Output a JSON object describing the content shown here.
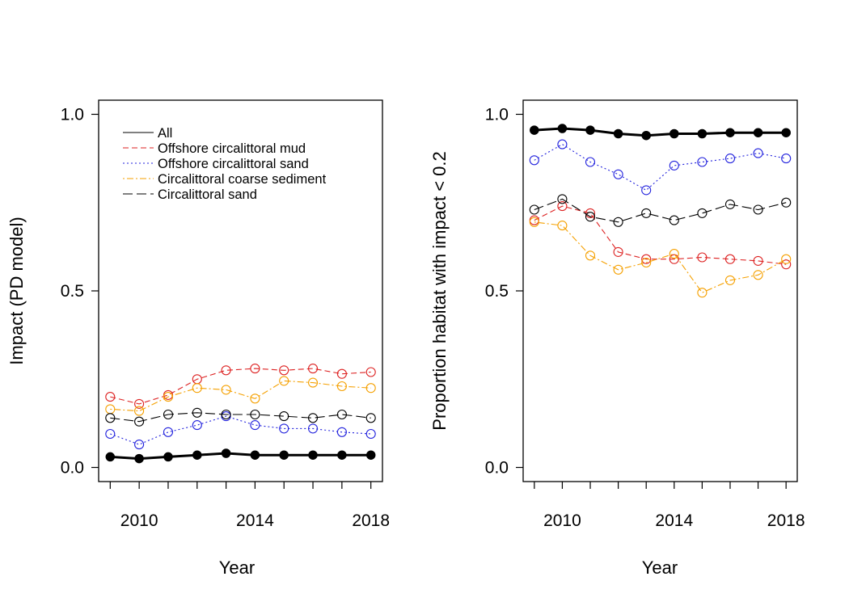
{
  "chart_data": [
    {
      "type": "line",
      "title": "",
      "xlabel": "Year",
      "ylabel": "Impact (PD model)",
      "xlim": [
        2008.6,
        2018.4
      ],
      "ylim": [
        -0.04,
        1.04
      ],
      "x_ticks": [
        2009,
        2010,
        2011,
        2012,
        2013,
        2014,
        2015,
        2016,
        2017,
        2018
      ],
      "x_tick_labels": [
        "2010",
        "2014",
        "2018"
      ],
      "y_ticks": [
        "0.0",
        "0.5",
        "1.0"
      ],
      "x": [
        2009,
        2010,
        2011,
        2012,
        2013,
        2014,
        2015,
        2016,
        2017,
        2018
      ],
      "legend": {
        "position": "top-left",
        "entries": [
          "All",
          "Offshore circalittoral mud",
          "Offshore circalittoral sand",
          "Circalittoral coarse sediment",
          "Circalittoral sand"
        ]
      },
      "series": [
        {
          "name": "All",
          "color": "#000000",
          "style": "solid-bold-filled",
          "values": [
            0.03,
            0.025,
            0.03,
            0.035,
            0.04,
            0.035,
            0.035,
            0.035,
            0.035,
            0.035
          ]
        },
        {
          "name": "Offshore circalittoral mud",
          "color": "#dd2222",
          "style": "dashed",
          "values": [
            0.2,
            0.18,
            0.205,
            0.25,
            0.275,
            0.28,
            0.275,
            0.28,
            0.265,
            0.27
          ]
        },
        {
          "name": "Offshore circalittoral sand",
          "color": "#2222dd",
          "style": "dotted",
          "values": [
            0.095,
            0.065,
            0.1,
            0.12,
            0.145,
            0.12,
            0.11,
            0.11,
            0.1,
            0.095
          ]
        },
        {
          "name": "Circalittoral coarse sediment",
          "color": "#f5a000",
          "style": "dotdash",
          "values": [
            0.165,
            0.16,
            0.2,
            0.225,
            0.22,
            0.195,
            0.245,
            0.24,
            0.23,
            0.225
          ]
        },
        {
          "name": "Circalittoral sand",
          "color": "#000000",
          "style": "longdash",
          "values": [
            0.14,
            0.13,
            0.15,
            0.155,
            0.15,
            0.15,
            0.145,
            0.14,
            0.15,
            0.14
          ]
        }
      ]
    },
    {
      "type": "line",
      "title": "",
      "xlabel": "Year",
      "ylabel": "Proportion habitat with impact < 0.2",
      "xlim": [
        2008.6,
        2018.4
      ],
      "ylim": [
        -0.04,
        1.04
      ],
      "x_ticks": [
        2009,
        2010,
        2011,
        2012,
        2013,
        2014,
        2015,
        2016,
        2017,
        2018
      ],
      "x_tick_labels": [
        "2010",
        "2014",
        "2018"
      ],
      "y_ticks": [
        "0.0",
        "0.5",
        "1.0"
      ],
      "x": [
        2009,
        2010,
        2011,
        2012,
        2013,
        2014,
        2015,
        2016,
        2017,
        2018
      ],
      "series": [
        {
          "name": "All",
          "color": "#000000",
          "style": "solid-bold-filled",
          "values": [
            0.955,
            0.96,
            0.955,
            0.945,
            0.94,
            0.945,
            0.945,
            0.948,
            0.948,
            0.948
          ]
        },
        {
          "name": "Offshore circalittoral mud",
          "color": "#dd2222",
          "style": "dashed",
          "values": [
            0.7,
            0.74,
            0.72,
            0.61,
            0.59,
            0.59,
            0.595,
            0.59,
            0.585,
            0.575
          ]
        },
        {
          "name": "Offshore circalittoral sand",
          "color": "#2222dd",
          "style": "dotted",
          "values": [
            0.87,
            0.915,
            0.865,
            0.83,
            0.785,
            0.855,
            0.865,
            0.875,
            0.89,
            0.875
          ]
        },
        {
          "name": "Circalittoral coarse sediment",
          "color": "#f5a000",
          "style": "dotdash",
          "values": [
            0.695,
            0.685,
            0.6,
            0.56,
            0.58,
            0.605,
            0.495,
            0.53,
            0.545,
            0.59
          ]
        },
        {
          "name": "Circalittoral sand",
          "color": "#000000",
          "style": "longdash",
          "values": [
            0.73,
            0.76,
            0.71,
            0.695,
            0.72,
            0.7,
            0.72,
            0.745,
            0.73,
            0.75
          ]
        }
      ]
    }
  ]
}
